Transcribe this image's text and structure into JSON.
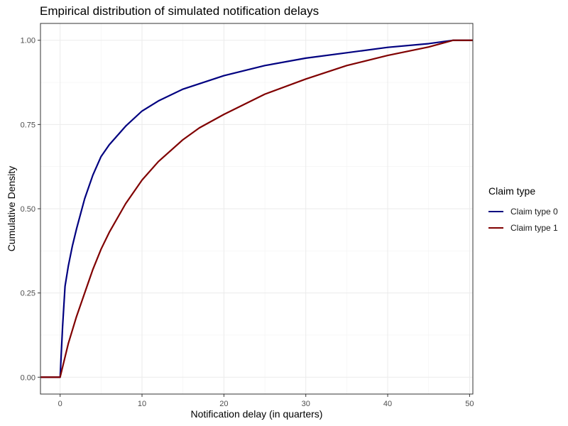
{
  "chart_data": {
    "type": "line",
    "title": "Empirical distribution of simulated notification delays",
    "xlabel": "Notification delay (in quarters)",
    "ylabel": "Cumulative Density",
    "xlim": [
      -2.4,
      50.4
    ],
    "ylim": [
      -0.05,
      1.05
    ],
    "xticks": [
      0,
      10,
      20,
      30,
      40,
      50
    ],
    "xtick_labels": [
      "0",
      "10",
      "20",
      "30",
      "40",
      "50"
    ],
    "yticks": [
      0,
      0.25,
      0.5,
      0.75,
      1.0
    ],
    "ytick_labels": [
      "0.00",
      "0.25",
      "0.50",
      "0.75",
      "1.00"
    ],
    "grid": true,
    "legend": {
      "title": "Claim type",
      "position": "right"
    },
    "series": [
      {
        "name": "Claim type 0",
        "color": "#000080",
        "x": [
          -2.4,
          0,
          0.3,
          0.6,
          1,
          1.5,
          2,
          3,
          4,
          5,
          6,
          8,
          10,
          12,
          15,
          20,
          25,
          30,
          35,
          40,
          45,
          48,
          50.4
        ],
        "y": [
          0,
          0,
          0.15,
          0.27,
          0.33,
          0.39,
          0.44,
          0.53,
          0.6,
          0.655,
          0.69,
          0.745,
          0.79,
          0.82,
          0.855,
          0.895,
          0.925,
          0.947,
          0.963,
          0.979,
          0.99,
          1.0,
          1.0
        ]
      },
      {
        "name": "Claim type 1",
        "color": "#800000",
        "x": [
          -2.4,
          0,
          0.4,
          1,
          2,
          3,
          4,
          5,
          6,
          8,
          10,
          12,
          15,
          17,
          20,
          25,
          30,
          35,
          40,
          45,
          48,
          50.4
        ],
        "y": [
          0,
          0,
          0.04,
          0.1,
          0.18,
          0.25,
          0.32,
          0.38,
          0.43,
          0.515,
          0.585,
          0.64,
          0.705,
          0.74,
          0.78,
          0.84,
          0.885,
          0.925,
          0.955,
          0.98,
          1.0,
          1.0
        ]
      }
    ]
  }
}
